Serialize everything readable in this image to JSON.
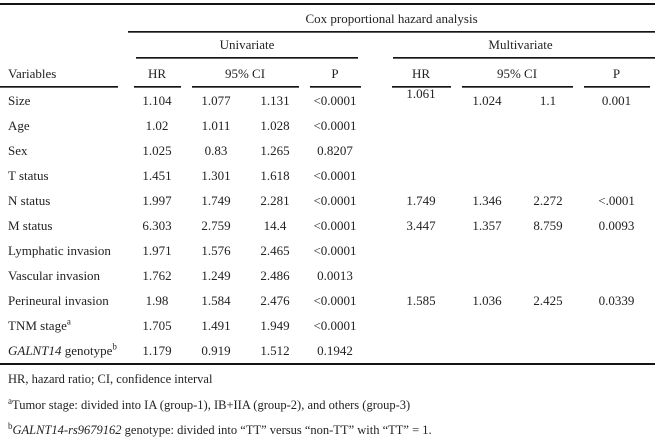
{
  "colors": {
    "background": "#ffffff",
    "text": "#222222",
    "rule": "#151515"
  },
  "table": {
    "title": "Cox proportional hazard analysis",
    "groups": [
      "Univariate",
      "Multivariate"
    ],
    "headers": {
      "variables": "Variables",
      "hr": "HR",
      "ci": "95% CI",
      "p": "P"
    },
    "rows": [
      {
        "name_italic": "",
        "name": "Size",
        "sup": "",
        "uni": [
          "1.104",
          "1.077",
          "1.131",
          "<0.0001"
        ],
        "multi": [
          "1.061",
          "1.024",
          "1.1",
          "0.001"
        ]
      },
      {
        "name_italic": "",
        "name": "Age",
        "sup": "",
        "uni": [
          "1.02",
          "1.011",
          "1.028",
          "<0.0001"
        ],
        "multi": [
          "",
          "",
          "",
          ""
        ]
      },
      {
        "name_italic": "",
        "name": "Sex",
        "sup": "",
        "uni": [
          "1.025",
          "0.83",
          "1.265",
          "0.8207"
        ],
        "multi": [
          "",
          "",
          "",
          ""
        ]
      },
      {
        "name_italic": "",
        "name": "T status",
        "sup": "",
        "uni": [
          "1.451",
          "1.301",
          "1.618",
          "<0.0001"
        ],
        "multi": [
          "",
          "",
          "",
          ""
        ]
      },
      {
        "name_italic": "",
        "name": "N status",
        "sup": "",
        "uni": [
          "1.997",
          "1.749",
          "2.281",
          "<0.0001"
        ],
        "multi": [
          "1.749",
          "1.346",
          "2.272",
          "<.0001"
        ]
      },
      {
        "name_italic": "",
        "name": "M status",
        "sup": "",
        "uni": [
          "6.303",
          "2.759",
          "14.4",
          "<0.0001"
        ],
        "multi": [
          "3.447",
          "1.357",
          "8.759",
          "0.0093"
        ]
      },
      {
        "name_italic": "",
        "name": "Lymphatic invasion",
        "sup": "",
        "uni": [
          "1.971",
          "1.576",
          "2.465",
          "<0.0001"
        ],
        "multi": [
          "",
          "",
          "",
          ""
        ]
      },
      {
        "name_italic": "",
        "name": "Vascular invasion",
        "sup": "",
        "uni": [
          "1.762",
          "1.249",
          "2.486",
          "0.0013"
        ],
        "multi": [
          "",
          "",
          "",
          ""
        ]
      },
      {
        "name_italic": "",
        "name": "Perineural invasion",
        "sup": "",
        "uni": [
          "1.98",
          "1.584",
          "2.476",
          "<0.0001"
        ],
        "multi": [
          "1.585",
          "1.036",
          "2.425",
          "0.0339"
        ]
      },
      {
        "name_italic": "",
        "name": "TNM stage",
        "sup": "a",
        "uni": [
          "1.705",
          "1.491",
          "1.949",
          "<0.0001"
        ],
        "multi": [
          "",
          "",
          "",
          ""
        ]
      },
      {
        "name_italic": "GALNT14",
        "name": " genotype",
        "sup": "b",
        "uni": [
          "1.179",
          "0.919",
          "1.512",
          "0.1942"
        ],
        "multi": [
          "",
          "",
          "",
          ""
        ]
      }
    ],
    "footnotes": [
      {
        "sup": "",
        "italic": "",
        "text": "HR, hazard ratio; CI, confidence interval"
      },
      {
        "sup": "a",
        "italic": "",
        "text": "Tumor stage: divided into IA (group-1), IB+IIA (group-2), and others (group-3)"
      },
      {
        "sup": "b",
        "italic": "GALNT14-rs9679162",
        "text": " genotype: divided into “TT” versus “non-TT” with “TT” = 1."
      }
    ]
  }
}
